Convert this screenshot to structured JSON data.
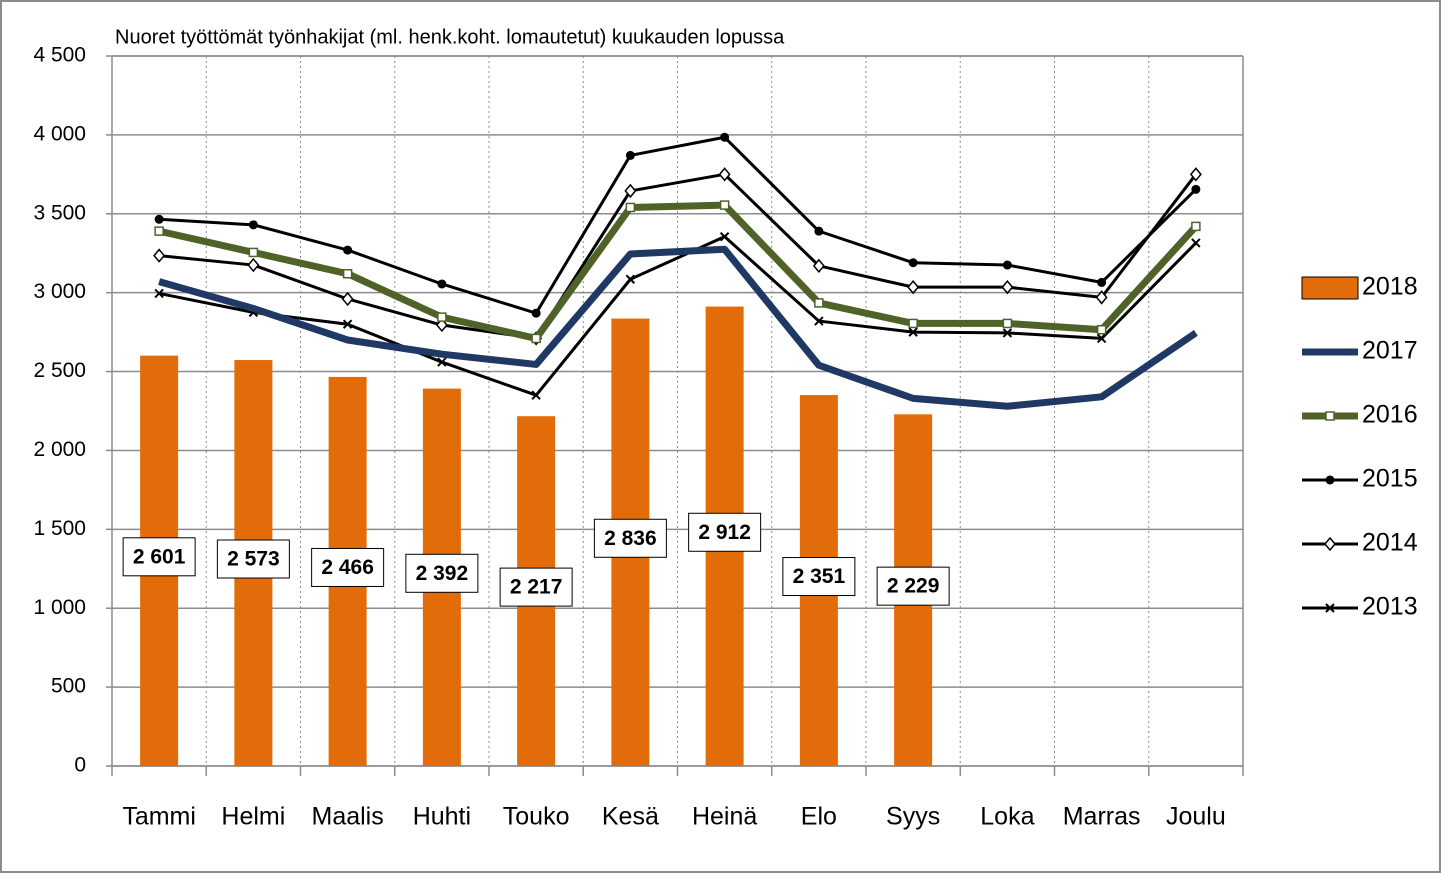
{
  "chart_data": {
    "type": "bar",
    "title": "Nuoret työttömät työnhakijat (ml. henk.koht. lomautetut) kuukauden lopussa",
    "categories": [
      "Tammi",
      "Helmi",
      "Maalis",
      "Huhti",
      "Touko",
      "Kesä",
      "Heinä",
      "Elo",
      "Syys",
      "Loka",
      "Marras",
      "Joulu"
    ],
    "series": [
      {
        "name": "2018",
        "type": "bar",
        "color": "#e36c0a",
        "values": [
          2601,
          2573,
          2466,
          2392,
          2217,
          2836,
          2912,
          2351,
          2229,
          null,
          null,
          null
        ],
        "value_labels": [
          "2 601",
          "2 573",
          "2 466",
          "2 392",
          "2 217",
          "2 836",
          "2 912",
          "2 351",
          "2 229",
          null,
          null,
          null
        ]
      },
      {
        "name": "2017",
        "type": "line",
        "color": "#1f3864",
        "width": 7,
        "marker": "none",
        "values": [
          3070,
          2900,
          2700,
          2610,
          2545,
          3245,
          3275,
          2540,
          2330,
          2280,
          2340,
          2745
        ]
      },
      {
        "name": "2016",
        "type": "line",
        "color": "#4f6228",
        "width": 7,
        "marker": "square",
        "values": [
          3390,
          3255,
          3120,
          2845,
          2710,
          3540,
          3555,
          2935,
          2805,
          2805,
          2765,
          3420
        ]
      },
      {
        "name": "2015",
        "type": "line",
        "color": "#000000",
        "width": 3,
        "marker": "circle",
        "values": [
          3465,
          3430,
          3270,
          3055,
          2870,
          3870,
          3985,
          3390,
          3190,
          3175,
          3065,
          3655
        ]
      },
      {
        "name": "2014",
        "type": "line",
        "color": "#000000",
        "width": 3,
        "marker": "diamond",
        "values": [
          3235,
          3175,
          2960,
          2795,
          2710,
          3645,
          3750,
          3170,
          3035,
          3035,
          2970,
          3750
        ]
      },
      {
        "name": "2013",
        "type": "line",
        "color": "#000000",
        "width": 3,
        "marker": "x",
        "values": [
          2995,
          2875,
          2800,
          2560,
          2350,
          3085,
          3355,
          2820,
          2750,
          2745,
          2710,
          3315
        ]
      }
    ],
    "ylim": [
      0,
      4500
    ],
    "yticks": [
      0,
      500,
      {
        "value": 1000,
        "label": "1 000"
      },
      {
        "value": 1500,
        "label": "1 500"
      },
      {
        "value": 2000,
        "label": "2 000"
      },
      {
        "value": 2500,
        "label": "2 500"
      },
      {
        "value": 3000,
        "label": "3 000"
      },
      {
        "value": 3500,
        "label": "3 500"
      },
      {
        "value": 4000,
        "label": "4 000"
      },
      {
        "value": 4500,
        "label": "4 500"
      }
    ],
    "grid": true,
    "legend": "right"
  }
}
